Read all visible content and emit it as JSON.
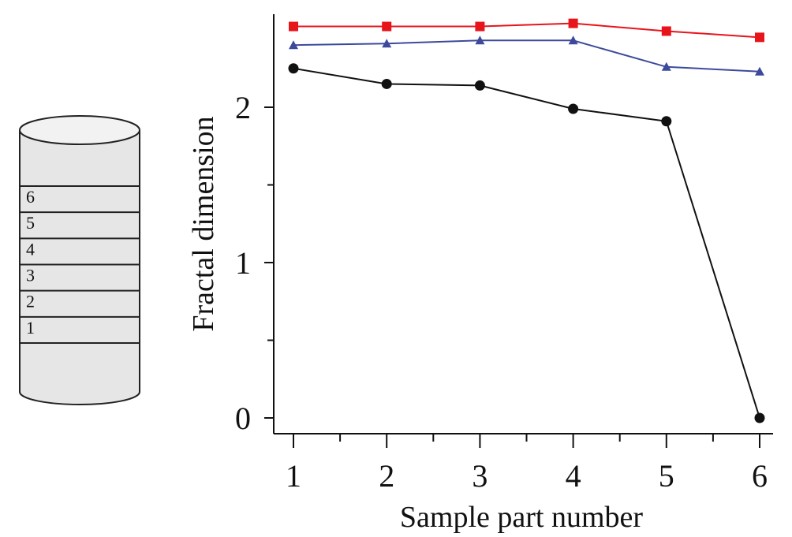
{
  "sample_diagram": {
    "layers": [
      "6",
      "5",
      "4",
      "3",
      "2",
      "1"
    ],
    "colors": {
      "fill": "#e6e6e6",
      "stroke": "#222222"
    }
  },
  "chart_data": {
    "type": "line",
    "xlabel": "Sample part number",
    "ylabel": "Fractal dimension",
    "x": [
      1,
      2,
      3,
      4,
      5,
      6
    ],
    "xticks": [
      "1",
      "2",
      "3",
      "4",
      "5",
      "6"
    ],
    "yticks": [
      "0",
      "1",
      "2"
    ],
    "ylim": [
      -0.1,
      2.6
    ],
    "xlim": [
      0.8,
      6.2
    ],
    "grid": false,
    "legend": "none",
    "series": [
      {
        "marker": "square",
        "color": "#e8141c",
        "values": [
          2.52,
          2.52,
          2.52,
          2.54,
          2.49,
          2.45
        ]
      },
      {
        "marker": "triangle",
        "color": "#3d4a9c",
        "values": [
          2.4,
          2.41,
          2.43,
          2.43,
          2.26,
          2.23
        ]
      },
      {
        "marker": "circle",
        "color": "#111111",
        "values": [
          2.25,
          2.15,
          2.14,
          1.99,
          1.91,
          0.0
        ]
      }
    ]
  }
}
